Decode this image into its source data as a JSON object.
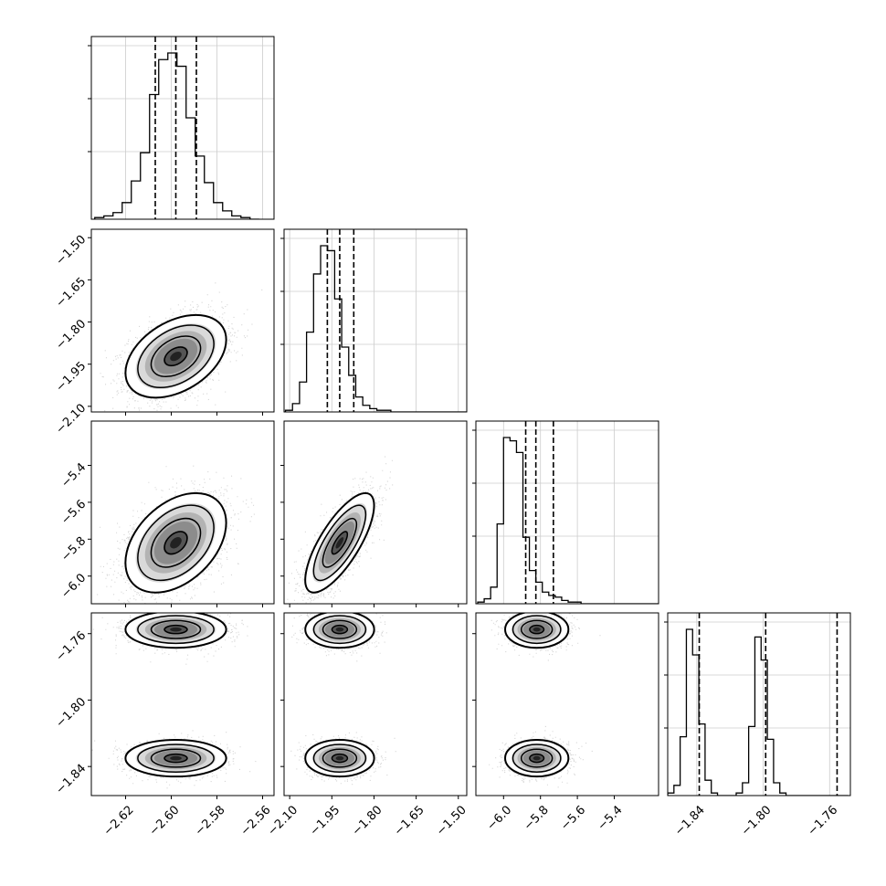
{
  "chart_data": {
    "type": "corner",
    "parameters": [
      {
        "range": [
          -2.635,
          -2.555
        ],
        "ticks": [
          "−2.62",
          "−2.60",
          "−2.58",
          "−2.56"
        ],
        "tick_values": [
          -2.62,
          -2.6,
          -2.58,
          -2.56
        ],
        "quantiles": [
          -2.607,
          -2.598,
          -2.589
        ],
        "hist_edges_start": -2.6335,
        "hist_bin_width": 0.004,
        "hist_counts": [
          1,
          2,
          4,
          10,
          23,
          40,
          75,
          96,
          100,
          92,
          61,
          38,
          22,
          10,
          5,
          2,
          1,
          0
        ]
      },
      {
        "range": [
          -2.12,
          -1.47
        ],
        "ticks": [
          "−2.10",
          "−1.95",
          "−1.80",
          "−1.65",
          "−1.50"
        ],
        "tick_values": [
          -2.1,
          -1.95,
          -1.8,
          -1.65,
          -1.5
        ],
        "quantiles": [
          -1.966,
          -1.922,
          -1.872
        ],
        "hist_edges_start": -2.115,
        "hist_bin_width": 0.025,
        "hist_counts": [
          1,
          5,
          18,
          48,
          83,
          100,
          97,
          68,
          39,
          22,
          9,
          4,
          2,
          1,
          1,
          0,
          0,
          0,
          0,
          0,
          0,
          0,
          0,
          0,
          0,
          0
        ]
      },
      {
        "range": [
          -6.15,
          -5.16
        ],
        "ticks": [
          "−6.0",
          "−5.8",
          "−5.6",
          "−5.4"
        ],
        "tick_values": [
          -6.0,
          -5.8,
          -5.6,
          -5.4
        ],
        "quantiles": [
          -5.88,
          -5.825,
          -5.73
        ],
        "hist_edges_start": -6.14,
        "hist_bin_width": 0.035,
        "hist_counts": [
          1,
          3,
          10,
          48,
          100,
          98,
          91,
          40,
          20,
          13,
          7,
          5,
          4,
          2,
          1,
          1,
          0,
          0,
          0,
          0,
          0,
          0,
          0,
          0,
          0,
          0,
          0,
          0
        ]
      },
      {
        "range": [
          -1.8575,
          -1.7475
        ],
        "ticks": [
          "−1.84",
          "−1.80",
          "−1.76"
        ],
        "tick_values": [
          -1.84,
          -1.8,
          -1.76
        ],
        "quantiles": [
          -1.8385,
          -1.7985,
          -1.7555
        ],
        "hist_edges_start": -1.8575,
        "hist_bin_width": 0.00375,
        "hist_counts": [
          1,
          4,
          23,
          65,
          55,
          28,
          6,
          1,
          0,
          0,
          0,
          1,
          5,
          27,
          62,
          53,
          22,
          5,
          1,
          0,
          0,
          0,
          0,
          0,
          0,
          0,
          0,
          0,
          0
        ]
      }
    ],
    "pairs": [
      {
        "row": 1,
        "col": 0,
        "mean": [
          -2.598,
          -1.922
        ],
        "sd": [
          0.009,
          0.06
        ],
        "rho": 0.4
      },
      {
        "row": 2,
        "col": 0,
        "mean": [
          -2.598,
          -5.82
        ],
        "sd": [
          0.009,
          0.11
        ],
        "rho": 0.4
      },
      {
        "row": 2,
        "col": 1,
        "mean": [
          -1.922,
          -5.82
        ],
        "sd": [
          0.05,
          0.11
        ],
        "rho": 0.75
      },
      {
        "row": 3,
        "col": 0,
        "modes": [
          -1.7575,
          -1.835
        ],
        "mean_x": -2.598,
        "sd_x": 0.009,
        "sd_y": 0.0045
      },
      {
        "row": 3,
        "col": 1,
        "modes": [
          -1.7575,
          -1.835
        ],
        "mean_x": -1.922,
        "sd_x": 0.05,
        "sd_y": 0.0045
      },
      {
        "row": 3,
        "col": 2,
        "modes": [
          -1.7575,
          -1.835
        ],
        "mean_x": -5.82,
        "sd_x": 0.07,
        "sd_y": 0.0045
      }
    ],
    "grid": true
  }
}
